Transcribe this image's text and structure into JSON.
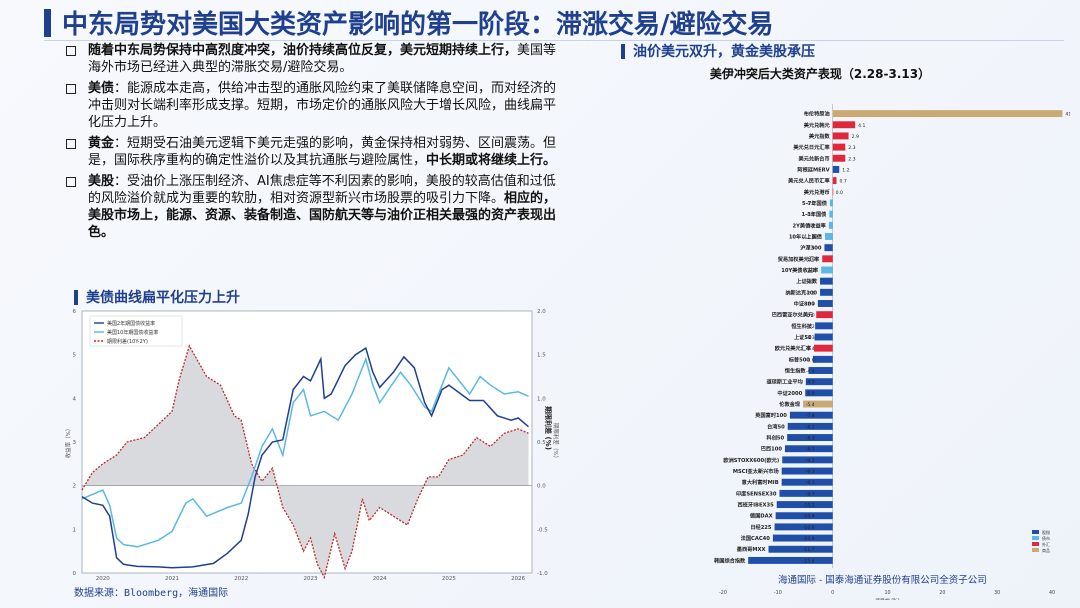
{
  "page": {
    "title": "中东局势对美国大类资产影响的第一阶段：滞涨交易/避险交易"
  },
  "bullets": [
    {
      "lead": "",
      "segments": [
        {
          "t": "随着中东局势保持中高烈度冲突，油价持续高位反复，美元短期持续上行，",
          "b": true
        },
        {
          "t": "美国等海外市场已经进入典型的滞胀交易/避险交易。",
          "b": false
        }
      ]
    },
    {
      "lead": "美债",
      "segments": [
        {
          "t": "：能源成本走高，供给冲击型的通胀风险约束了美联储降息空间，而对经济的冲击则对长端利率形成支撑。短期，市场定价的通胀风险大于增长风险，曲线扁平化压力上升。",
          "b": false
        }
      ]
    },
    {
      "lead": "黄金",
      "segments": [
        {
          "t": "：短期受石油美元逻辑下美元走强的影响，黄金保持相对弱势、区间震荡。但是，国际秩序重构的确定性溢价以及其抗通胀与避险属性，",
          "b": false
        },
        {
          "t": "中长期或将继续上行。",
          "b": true
        }
      ]
    },
    {
      "lead": "美股",
      "segments": [
        {
          "t": "：受油价上涨压制经济、AI焦虑症等不利因素的影响，美股的较高估值和过低的风险溢价就成为重要的软肋，相对资源型新兴市场股票的吸引力下降。",
          "b": false
        },
        {
          "t": "相应的，美股市场上，能源、资源、装备制造、国防航天等与油价正相关最强的资产表现出色。",
          "b": true
        }
      ]
    }
  ],
  "left_section": {
    "title": "美债曲线扁平化压力上升"
  },
  "right_section": {
    "title": "油价美元双升，黄金美股承压"
  },
  "source": "数据来源：Bloomberg，海通国际",
  "footer": "海通国际 - 国泰海通证券股份有限公司全资子公司",
  "colors": {
    "brand": "#1f3f8f",
    "bar_neg": "#1f4fa8",
    "bar_pos": "#e0283c",
    "bar_fx": "#59b8e8",
    "bar_commodity": "#c9aa74",
    "line_2y": "#1f3f8f",
    "line_10y": "#59b8e8",
    "spread": "#c0272d"
  },
  "chart_data": [
    {
      "type": "line",
      "title": "",
      "ylabel": "收益率（%）",
      "y2label": "期限利差（%）",
      "ylim": [
        0,
        6
      ],
      "y2lim": [
        -1.0,
        2.0
      ],
      "yticks": [
        "0",
        "1",
        "2",
        "3",
        "4",
        "5",
        "6"
      ],
      "y2ticks": [
        "-1.0",
        "-0.5",
        "0.0",
        "0.5",
        "1.0",
        "1.5",
        "2.0"
      ],
      "y2_short_label": "期限利差 (%)",
      "xticks": [
        "2020",
        "2021",
        "2022",
        "2023",
        "2024",
        "2025",
        "2026"
      ],
      "legend": [
        "美国2年期国债收益率",
        "美国10年期国债收益率",
        "期限利差(10Y-2Y)"
      ],
      "series": [
        {
          "name": "美国2年期国债收益率",
          "x": [
            2019.7,
            2019.85,
            2020.0,
            2020.1,
            2020.2,
            2020.3,
            2020.5,
            2020.8,
            2021.0,
            2021.3,
            2021.6,
            2021.8,
            2022.0,
            2022.1,
            2022.2,
            2022.3,
            2022.45,
            2022.6,
            2022.75,
            2022.9,
            2023.0,
            2023.15,
            2023.2,
            2023.3,
            2023.5,
            2023.65,
            2023.8,
            2023.9,
            2024.0,
            2024.2,
            2024.35,
            2024.5,
            2024.65,
            2024.75,
            2024.9,
            2025.0,
            2025.3,
            2025.5,
            2025.7,
            2025.9,
            2026.0,
            2026.15
          ],
          "values": [
            1.75,
            1.6,
            1.55,
            1.3,
            0.35,
            0.2,
            0.15,
            0.14,
            0.12,
            0.14,
            0.22,
            0.45,
            0.75,
            1.35,
            2.2,
            2.7,
            3.0,
            3.05,
            4.2,
            4.5,
            4.4,
            4.9,
            4.0,
            4.1,
            4.75,
            5.0,
            5.15,
            4.6,
            4.25,
            4.6,
            4.95,
            4.7,
            3.9,
            3.6,
            4.2,
            4.3,
            3.95,
            3.95,
            3.6,
            3.5,
            3.55,
            3.35
          ]
        },
        {
          "name": "美国10年期国债收益率",
          "x": [
            2019.7,
            2019.85,
            2020.0,
            2020.1,
            2020.2,
            2020.3,
            2020.5,
            2020.8,
            2021.0,
            2021.2,
            2021.3,
            2021.5,
            2021.8,
            2022.0,
            2022.15,
            2022.3,
            2022.45,
            2022.6,
            2022.75,
            2022.9,
            2023.0,
            2023.2,
            2023.4,
            2023.6,
            2023.8,
            2023.9,
            2024.0,
            2024.3,
            2024.45,
            2024.65,
            2024.75,
            2024.9,
            2025.0,
            2025.3,
            2025.45,
            2025.6,
            2025.8,
            2026.0,
            2026.15
          ],
          "values": [
            1.7,
            1.8,
            1.9,
            1.55,
            0.8,
            0.65,
            0.6,
            0.75,
            0.95,
            1.6,
            1.7,
            1.3,
            1.5,
            1.6,
            2.2,
            2.9,
            3.3,
            2.7,
            3.9,
            4.2,
            3.6,
            3.7,
            3.5,
            4.1,
            4.9,
            4.3,
            3.9,
            4.6,
            4.3,
            3.8,
            3.7,
            4.3,
            4.7,
            4.1,
            4.5,
            4.3,
            4.1,
            4.15,
            4.05
          ]
        },
        {
          "name": "期限利差(10Y-2Y)",
          "x": [
            2019.7,
            2019.85,
            2020.0,
            2020.2,
            2020.35,
            2020.6,
            2020.8,
            2021.0,
            2021.1,
            2021.25,
            2021.5,
            2021.7,
            2021.9,
            2022.0,
            2022.15,
            2022.3,
            2022.45,
            2022.6,
            2022.75,
            2022.9,
            2023.0,
            2023.1,
            2023.2,
            2023.35,
            2023.5,
            2023.6,
            2023.75,
            2023.85,
            2024.0,
            2024.2,
            2024.4,
            2024.55,
            2024.7,
            2024.85,
            2025.0,
            2025.2,
            2025.4,
            2025.6,
            2025.8,
            2026.0,
            2026.15
          ],
          "values": [
            -0.05,
            0.15,
            0.25,
            0.35,
            0.5,
            0.55,
            0.7,
            0.85,
            1.2,
            1.6,
            1.25,
            1.15,
            0.8,
            0.75,
            0.25,
            0.05,
            0.2,
            -0.25,
            -0.45,
            -0.75,
            -0.6,
            -0.9,
            -1.05,
            -0.55,
            -0.95,
            -0.75,
            -0.15,
            -0.4,
            -0.25,
            -0.35,
            -0.45,
            -0.15,
            0.1,
            0.1,
            0.3,
            0.35,
            0.55,
            0.45,
            0.6,
            0.65,
            0.6
          ]
        }
      ]
    },
    {
      "type": "bar",
      "orientation": "horizontal",
      "title": "美伊冲突后大类资产表现（2.28-3.13）",
      "xlabel": "涨跌幅 (%)",
      "xlim": [
        -20,
        40
      ],
      "xticks": [
        "-20",
        "-10",
        "0",
        "10",
        "20",
        "30",
        "40"
      ],
      "legend": [
        "股指",
        "债市",
        "外汇",
        "商品"
      ],
      "categories": [
        "布伦特原油",
        "美元兑韩元",
        "美元指数",
        "美元兑日元汇率",
        "美元兑新台币",
        "阿根廷MERV",
        "美元兑人民币汇率",
        "美元兑港币",
        "5-7年国债",
        "1-3年国债",
        "2Y美债收益率",
        "10年以上国债",
        "沪深300",
        "贸易加权美元汇率",
        "10Y美债收益率",
        "上证指数",
        "纳斯达克100",
        "中证800",
        "巴西雷亚尔兑美元",
        "恒生科技",
        "上证50",
        "欧元兑美元汇率",
        "标普500",
        "恒生指数",
        "道琼斯工业平均",
        "中证2000",
        "伦敦金现",
        "英国富时100",
        "台湾50",
        "科创50",
        "巴西100",
        "欧洲STOXX600(欧元)",
        "MSCI亚太新兴市场",
        "意大利富时MIB",
        "印度SENSEX30",
        "西班牙IBEX35",
        "德国DAX",
        "日经225",
        "法国CAC40",
        "墨西哥MXX",
        "韩国综合指数"
      ],
      "values": [
        41.9,
        4.1,
        2.9,
        2.3,
        2.3,
        1.2,
        0.7,
        0.0,
        -0.5,
        -0.6,
        -0.7,
        -1.4,
        -1.5,
        -1.9,
        -2.1,
        -2.3,
        -2.3,
        -2.7,
        -3.0,
        -3.2,
        -3.3,
        -3.4,
        -3.6,
        -4.4,
        -4.9,
        -5.0,
        -5.4,
        -7.8,
        -8.2,
        -8.3,
        -8.7,
        -9.2,
        -9.3,
        -9.3,
        -9.7,
        -10.2,
        -10.4,
        -10.6,
        -10.9,
        -11.7,
        -15.4
      ],
      "value_labels": [
        "41.9",
        "4.1",
        "2.9",
        "2.3",
        "2.3",
        "1.2",
        "0.7",
        "0.0",
        "-0.5",
        "-0.6",
        "-0.7",
        "-1.4",
        "-1.5",
        "-1.9",
        "-2.1",
        "-2.3",
        "-2.3",
        "-2.7",
        "-3.0",
        "-3.2",
        "-3.3",
        "-3.4",
        "-3.6",
        "-4.4",
        "-4.9",
        "-5.0",
        "-5.4",
        "-7.8",
        "-8.2",
        "-8.3",
        "-8.7",
        "-9.2",
        "-9.3",
        "-9.3",
        "-9.7",
        "-10.2",
        "-10.4",
        "-10.6",
        "-10.9",
        "-11.7",
        "-15.4"
      ],
      "groups": [
        "commodity",
        "fx",
        "fx",
        "fx",
        "fx",
        "equity",
        "fx",
        "fx",
        "bond",
        "bond",
        "bond",
        "bond",
        "equity",
        "fx",
        "bond",
        "equity",
        "equity",
        "equity",
        "fx",
        "equity",
        "equity",
        "fx",
        "equity",
        "equity",
        "equity",
        "equity",
        "commodity",
        "equity",
        "equity",
        "equity",
        "equity",
        "equity",
        "equity",
        "equity",
        "equity",
        "equity",
        "equity",
        "equity",
        "equity",
        "equity",
        "equity"
      ]
    }
  ]
}
